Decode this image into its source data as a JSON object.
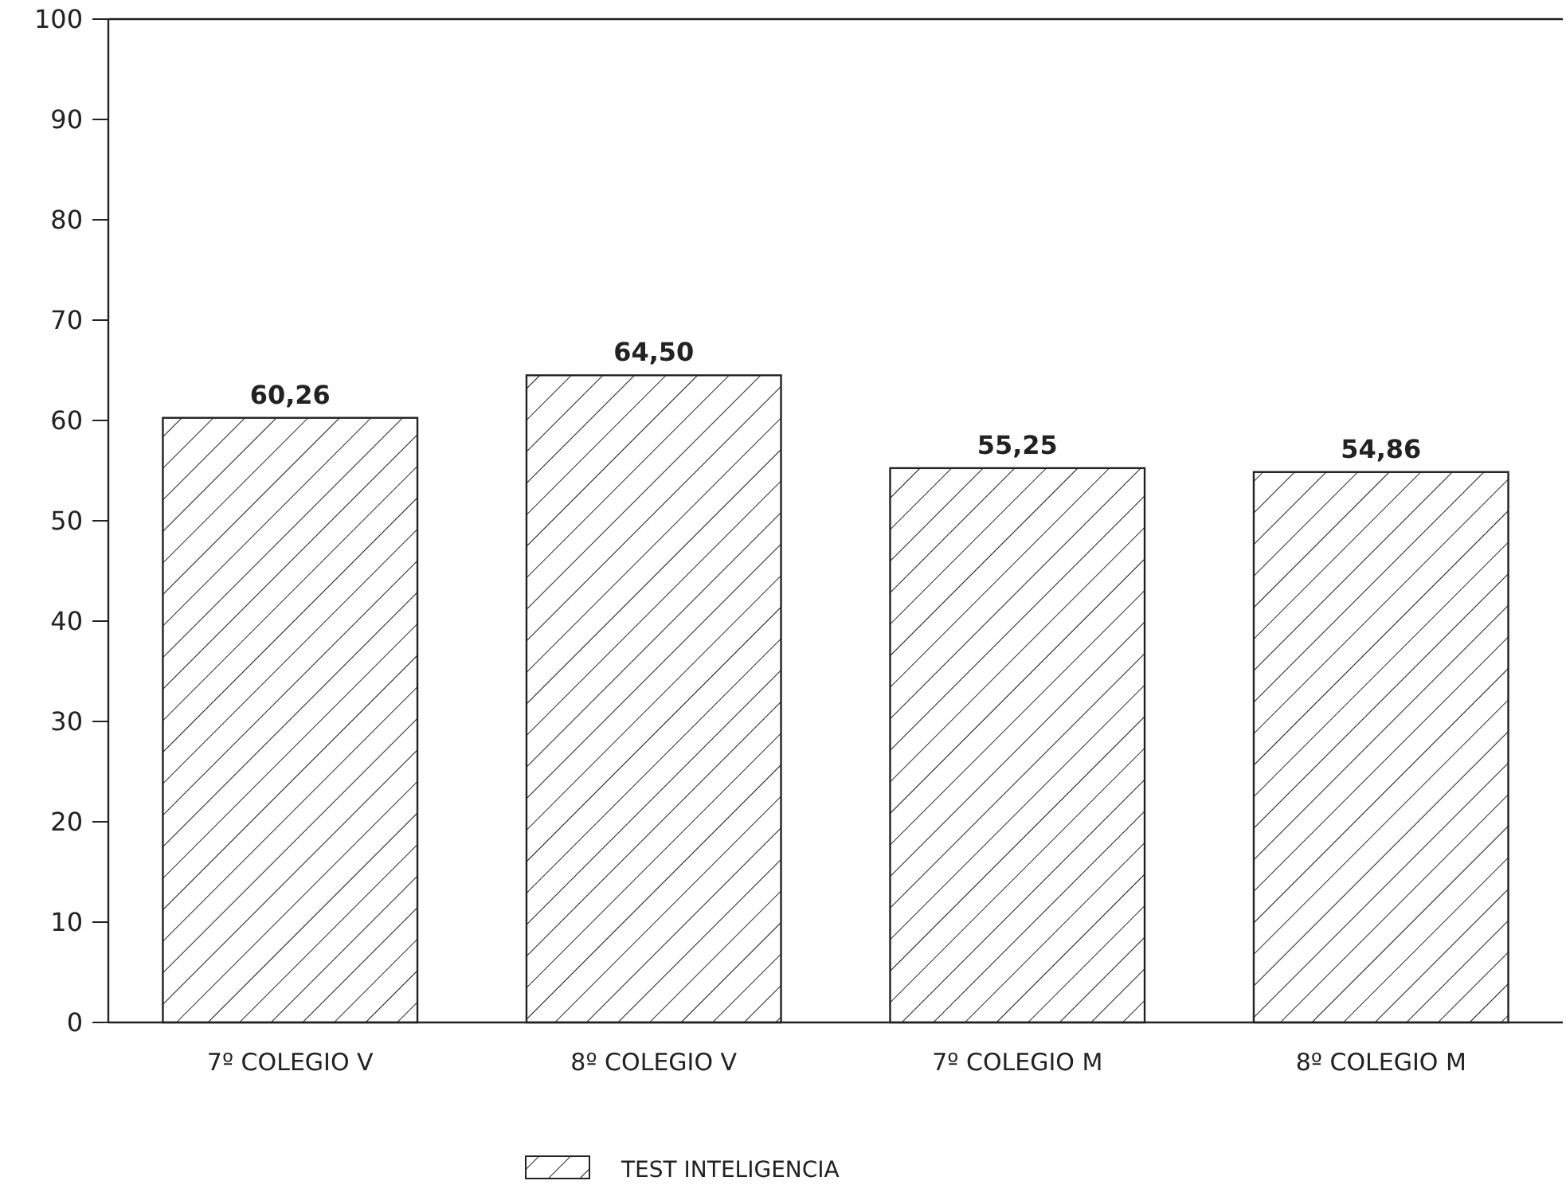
{
  "chart_data": {
    "type": "bar",
    "categories": [
      "7º COLEGIO V",
      "8º COLEGIO V",
      "7º COLEGIO M",
      "8º COLEGIO M"
    ],
    "series": [
      {
        "name": "TEST INTELIGENCIA",
        "color": "#222222",
        "values": [
          60.26,
          64.5,
          55.25,
          54.86
        ]
      }
    ],
    "value_labels": [
      "60,26",
      "64,50",
      "55,25",
      "54,86"
    ],
    "ylim": [
      0,
      100
    ],
    "yticks": [
      0,
      10,
      20,
      30,
      40,
      50,
      60,
      70,
      80,
      90,
      100
    ],
    "grid": false,
    "legend": "bottom"
  }
}
